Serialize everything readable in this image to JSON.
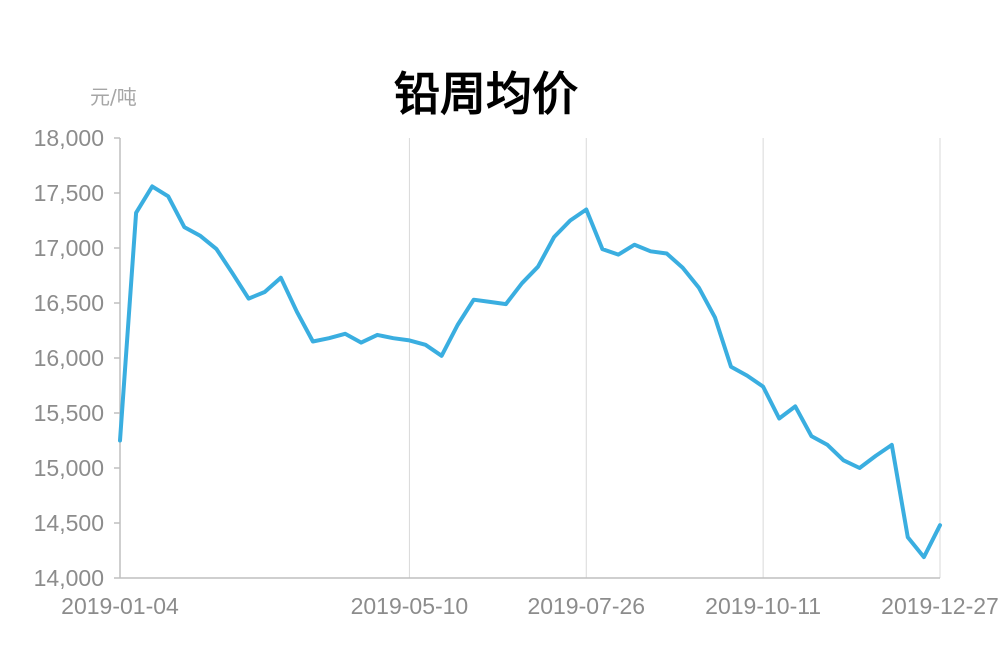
{
  "chart_data": {
    "type": "line",
    "title": "铅周均价",
    "unit_label": "元/吨",
    "xlabel": "",
    "ylabel": "",
    "x_tick_labels": [
      "2019-01-04",
      "2019-05-10",
      "2019-07-26",
      "2019-10-11",
      "2019-12-27"
    ],
    "y_tick_labels": [
      "14,000",
      "14,500",
      "15,000",
      "15,500",
      "16,000",
      "16,500",
      "17,000",
      "17,500",
      "18,000"
    ],
    "ylim": [
      14000,
      18000
    ],
    "y_step": 500,
    "grid": "vertical",
    "legend": "none",
    "color": "#3aaee0",
    "series": [
      {
        "values": [
          15250,
          17320,
          17560,
          17470,
          17190,
          17110,
          16990,
          16770,
          16540,
          16600,
          16730,
          16420,
          16150,
          16180,
          16220,
          16140,
          16210,
          16180,
          16160,
          16120,
          16020,
          16300,
          16530,
          16510,
          16490,
          16680,
          16830,
          17100,
          17250,
          17350,
          16990,
          16940,
          17030,
          16970,
          16950,
          16820,
          16640,
          16370,
          15920,
          15840,
          15740,
          15450,
          15560,
          15290,
          15210,
          15070,
          15000,
          15110,
          15210,
          14370,
          14190,
          14480
        ]
      }
    ]
  }
}
